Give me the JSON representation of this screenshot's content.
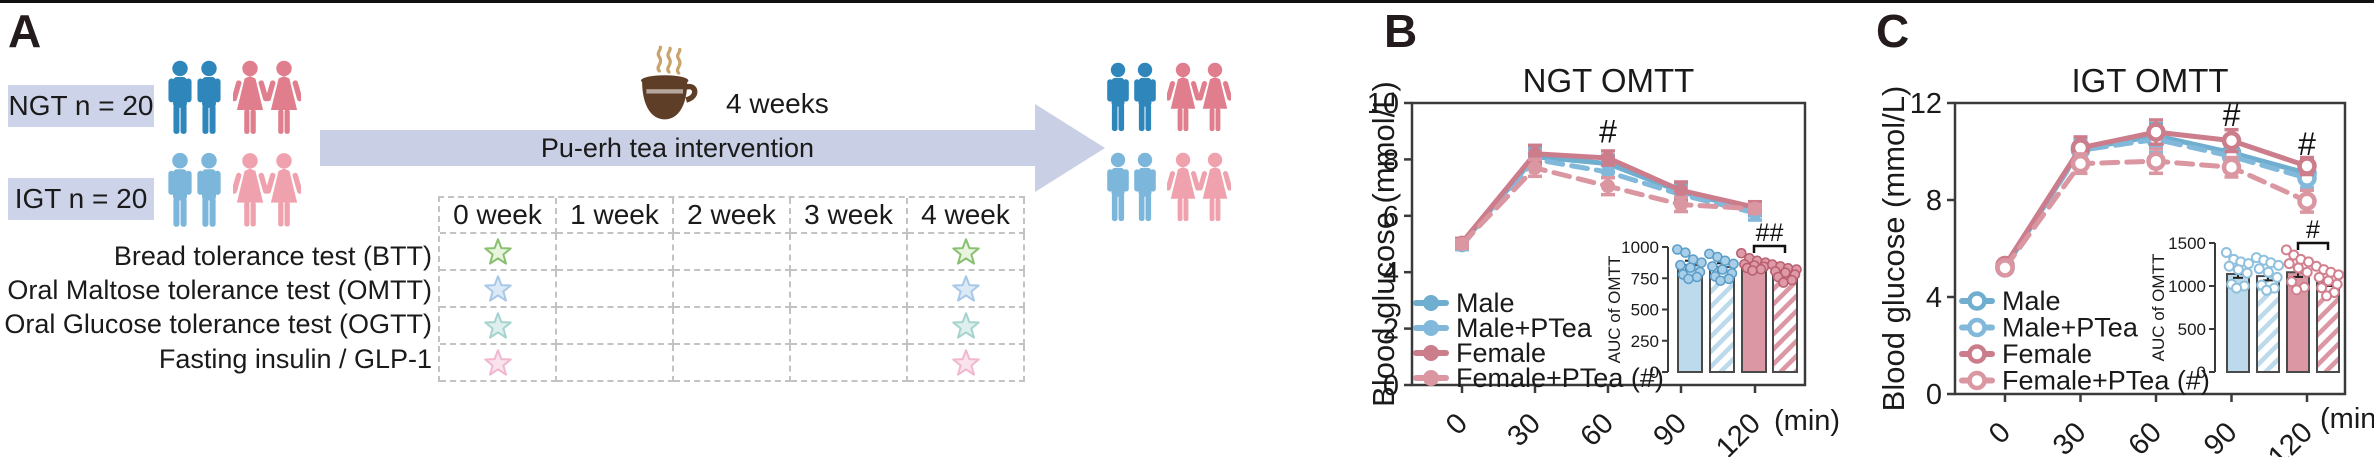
{
  "figure": {
    "background": "#ffffff",
    "top_rule_color": "#111111"
  },
  "panelA": {
    "label": "A",
    "groups": [
      {
        "name": "NGT",
        "label": "NGT n = 20",
        "male_color": "#2E86BB",
        "female_color": "#E07E8D"
      },
      {
        "name": "IGT",
        "label": "IGT n = 20",
        "male_color": "#7CB7DB",
        "female_color": "#EFA2AD"
      }
    ],
    "box_color": "#CDD3E8",
    "arrow_color": "#C9CFE4",
    "duration_label": "4 weeks",
    "arrow_label": "Pu-erh tea intervention",
    "cup": {
      "body_color": "#5F3E28",
      "steam_color": "#C8A36B"
    },
    "schedule": {
      "columns": [
        "0 week",
        "1 week",
        "2 week",
        "3 week",
        "4 week"
      ],
      "rows": [
        {
          "label": "Bread tolerance test (BTT)",
          "star": {
            "fill": "#E9F4DE",
            "stroke": "#88C070"
          },
          "marked_weeks": [
            0,
            4
          ]
        },
        {
          "label": "Oral Maltose tolerance test (OMTT)",
          "star": {
            "fill": "#DCEAF8",
            "stroke": "#A8C8E8"
          },
          "marked_weeks": [
            0,
            4
          ]
        },
        {
          "label": "Oral Glucose tolerance test (OGTT)",
          "star": {
            "fill": "#DFEFEE",
            "stroke": "#A5D3CF"
          },
          "marked_weeks": [
            0,
            4
          ]
        },
        {
          "label": "Fasting insulin / GLP-1",
          "star": {
            "fill": "#FBE3EE",
            "stroke": "#F0B7CF"
          },
          "marked_weeks": [
            0,
            4
          ]
        }
      ]
    }
  },
  "chart_data": [
    {
      "panel_label": "B",
      "type": "line",
      "title": "NGT  OMTT",
      "ylabel": "Blood glucose (mmol/L)",
      "x_unit": "(min)",
      "x": [
        0,
        30,
        60,
        90,
        120
      ],
      "ylim": [
        0,
        10
      ],
      "yticks": [
        0,
        2,
        4,
        6,
        8,
        10
      ],
      "marker": "filled",
      "legend_position": "inside-bottom-left",
      "series": [
        {
          "name": "Male",
          "color": "#6FAECF",
          "dash": false,
          "values": [
            5.0,
            8.1,
            7.85,
            6.85,
            6.2
          ],
          "errors": [
            0.15,
            0.3,
            0.3,
            0.3,
            0.2
          ]
        },
        {
          "name": "Male+PTea",
          "color": "#82B9DA",
          "dash": true,
          "values": [
            4.95,
            8.0,
            7.55,
            6.75,
            6.1
          ],
          "errors": [
            0.15,
            0.35,
            0.5,
            0.3,
            0.25
          ]
        },
        {
          "name": "Female",
          "color": "#CC7D8C",
          "dash": false,
          "values": [
            5.05,
            8.2,
            8.05,
            6.9,
            6.3
          ],
          "errors": [
            0.15,
            0.3,
            0.25,
            0.3,
            0.2
          ]
        },
        {
          "name": "Female+PTea (#)",
          "color": "#DA96A1",
          "dash": true,
          "values": [
            5.0,
            7.7,
            7.05,
            6.4,
            6.25
          ],
          "errors": [
            0.15,
            0.3,
            0.3,
            0.25,
            0.15
          ]
        }
      ],
      "annotations": [
        {
          "text": "#",
          "x": 60,
          "y": 8.6
        }
      ],
      "inset": {
        "type": "bar",
        "ylabel": "AUC of OMTT",
        "ylim": [
          0,
          1000
        ],
        "yticks": [
          0,
          250,
          500,
          750,
          1000
        ],
        "dot_style": "filled",
        "bars": [
          {
            "name": "Male",
            "value": 855,
            "error": 35,
            "fill": "#BCDAEC",
            "hatch": false,
            "dot_fill": "#A9CFE8",
            "dot_edge": "#5B9EC9",
            "dots": [
              980,
              955,
              900,
              875,
              855,
              835,
              800,
              780,
              760,
              745
            ]
          },
          {
            "name": "Male+PTea",
            "value": 840,
            "error": 30,
            "fill": "#BCDAEC",
            "hatch": true,
            "dot_fill": "#A9CFE8",
            "dot_edge": "#5B9EC9",
            "dots": [
              945,
              920,
              890,
              865,
              845,
              820,
              790,
              765,
              745,
              730
            ]
          },
          {
            "name": "Female",
            "value": 860,
            "error": 25,
            "fill": "#DB97A3",
            "hatch": false,
            "dot_fill": "#DE9AA6",
            "dot_edge": "#B95F70",
            "dots": [
              950,
              910,
              890,
              875,
              862,
              852,
              842,
              832,
              822,
              812
            ]
          },
          {
            "name": "Female+PTea",
            "value": 800,
            "error": 25,
            "fill": "#DB97A3",
            "hatch": true,
            "dot_fill": "#DE9AA6",
            "dot_edge": "#B95F70",
            "dots": [
              860,
              845,
              830,
              820,
              805,
              795,
              780,
              760,
              735,
              715
            ]
          }
        ],
        "significance": {
          "text": "##",
          "between": [
            2,
            3
          ]
        }
      }
    },
    {
      "panel_label": "C",
      "type": "line",
      "title": "IGT  OMTT",
      "ylabel": "Blood glucose (mmol/L)",
      "x_unit": "(min)",
      "x": [
        0,
        30,
        60,
        90,
        120
      ],
      "ylim": [
        0,
        12
      ],
      "yticks": [
        0,
        4,
        8,
        12
      ],
      "marker": "open",
      "legend_position": "inside-bottom-left",
      "series": [
        {
          "name": "Male",
          "color": "#6FAECF",
          "dash": false,
          "values": [
            5.2,
            10.1,
            10.65,
            9.95,
            9.1
          ],
          "errors": [
            0.15,
            0.4,
            0.5,
            0.45,
            0.4
          ]
        },
        {
          "name": "Male+PTea",
          "color": "#82B9DA",
          "dash": true,
          "values": [
            5.2,
            10.05,
            10.5,
            9.8,
            8.9
          ],
          "errors": [
            0.15,
            0.4,
            0.55,
            0.45,
            0.4
          ]
        },
        {
          "name": "Female",
          "color": "#CC7D8C",
          "dash": false,
          "values": [
            5.3,
            10.15,
            10.8,
            10.45,
            9.4
          ],
          "errors": [
            0.15,
            0.45,
            0.5,
            0.45,
            0.35
          ]
        },
        {
          "name": "Female+PTea (#)",
          "color": "#DA96A1",
          "dash": true,
          "values": [
            5.2,
            9.5,
            9.6,
            9.35,
            7.95
          ],
          "errors": [
            0.15,
            0.4,
            0.5,
            0.4,
            0.45
          ]
        }
      ],
      "annotations": [
        {
          "text": "#",
          "x": 90,
          "y": 11.05
        },
        {
          "text": "#",
          "x": 120,
          "y": 9.85
        }
      ],
      "inset": {
        "type": "bar",
        "ylabel": "AUC of OMTT",
        "ylim": [
          0,
          1500
        ],
        "yticks": [
          0,
          500,
          1000,
          1500
        ],
        "dot_style": "open",
        "bars": [
          {
            "name": "Male",
            "value": 1140,
            "error": 45,
            "fill": "#BCDAEC",
            "hatch": false,
            "dot_fill": "#ffffff",
            "dot_edge": "#8FC0DE",
            "dots": [
              1390,
              1310,
              1280,
              1260,
              1230,
              1190,
              1150,
              1020,
              1000,
              975
            ]
          },
          {
            "name": "Male+PTea",
            "value": 1115,
            "error": 50,
            "fill": "#BCDAEC",
            "hatch": true,
            "dot_fill": "#ffffff",
            "dot_edge": "#8FC0DE",
            "dots": [
              1330,
              1300,
              1270,
              1240,
              1200,
              1160,
              1100,
              1010,
              975,
              950
            ]
          },
          {
            "name": "Female",
            "value": 1160,
            "error": 55,
            "fill": "#DB97A3",
            "hatch": false,
            "dot_fill": "#ffffff",
            "dot_edge": "#D2808F",
            "dots": [
              1420,
              1360,
              1310,
              1280,
              1260,
              1210,
              1160,
              1050,
              985,
              955
            ]
          },
          {
            "name": "Female+PTea",
            "value": 1040,
            "error": 40,
            "fill": "#DB97A3",
            "hatch": true,
            "dot_fill": "#ffffff",
            "dot_edge": "#D2808F",
            "dots": [
              1230,
              1190,
              1160,
              1130,
              1100,
              1060,
              1020,
              980,
              925,
              885
            ]
          }
        ],
        "significance": {
          "text": "#",
          "between": [
            2,
            3
          ]
        }
      }
    }
  ]
}
